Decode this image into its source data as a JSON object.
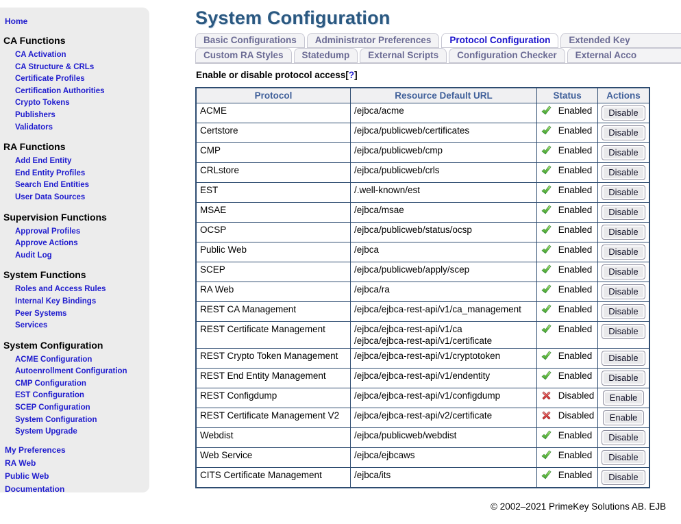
{
  "page_title": "System Configuration",
  "sidebar": {
    "items": [
      {
        "t": "link",
        "label": "Home"
      },
      {
        "t": "head",
        "label": "CA Functions"
      },
      {
        "t": "sub",
        "label": "CA Activation"
      },
      {
        "t": "sub",
        "label": "CA Structure & CRLs"
      },
      {
        "t": "sub",
        "label": "Certificate Profiles"
      },
      {
        "t": "sub",
        "label": "Certification Authorities"
      },
      {
        "t": "sub",
        "label": "Crypto Tokens"
      },
      {
        "t": "sub",
        "label": "Publishers"
      },
      {
        "t": "sub",
        "label": "Validators"
      },
      {
        "t": "head",
        "label": "RA Functions"
      },
      {
        "t": "sub",
        "label": "Add End Entity"
      },
      {
        "t": "sub",
        "label": "End Entity Profiles"
      },
      {
        "t": "sub",
        "label": "Search End Entities"
      },
      {
        "t": "sub",
        "label": "User Data Sources"
      },
      {
        "t": "head",
        "label": "Supervision Functions"
      },
      {
        "t": "sub",
        "label": "Approval Profiles"
      },
      {
        "t": "sub",
        "label": "Approve Actions"
      },
      {
        "t": "sub",
        "label": "Audit Log"
      },
      {
        "t": "head",
        "label": "System Functions"
      },
      {
        "t": "sub",
        "label": "Roles and Access Rules"
      },
      {
        "t": "sub",
        "label": "Internal Key Bindings"
      },
      {
        "t": "sub",
        "label": "Peer Systems"
      },
      {
        "t": "sub",
        "label": "Services"
      },
      {
        "t": "head",
        "label": "System Configuration"
      },
      {
        "t": "sub",
        "label": "ACME Configuration"
      },
      {
        "t": "sub",
        "label": "Autoenrollment Configuration"
      },
      {
        "t": "sub",
        "label": "CMP Configuration"
      },
      {
        "t": "sub",
        "label": "EST Configuration"
      },
      {
        "t": "sub",
        "label": "SCEP Configuration"
      },
      {
        "t": "sub",
        "label": "System Configuration"
      },
      {
        "t": "sub",
        "label": "System Upgrade"
      },
      {
        "t": "link",
        "gap": true,
        "label": "My Preferences"
      },
      {
        "t": "link",
        "label": "RA Web"
      },
      {
        "t": "link",
        "label": "Public Web"
      },
      {
        "t": "link",
        "label": "Documentation"
      }
    ]
  },
  "tabs": {
    "row1": [
      {
        "label": "Basic Configurations"
      },
      {
        "label": "Administrator Preferences"
      },
      {
        "label": "Protocol Configuration",
        "active": true
      },
      {
        "label": "Extended Key",
        "cut": true
      }
    ],
    "row2": [
      {
        "label": "Custom RA Styles"
      },
      {
        "label": "Statedump"
      },
      {
        "label": "External Scripts"
      },
      {
        "label": "Configuration Checker"
      },
      {
        "label": "External Acco",
        "cut": true
      }
    ]
  },
  "help": {
    "prefix": "Enable or disable protocol access",
    "bracket_open": "[",
    "link": "?",
    "bracket_close": "]"
  },
  "table": {
    "columns": [
      "Protocol",
      "Resource Default URL",
      "Status",
      "Actions"
    ],
    "rows": [
      {
        "protocol": "ACME",
        "urls": [
          "/ejbca/acme"
        ],
        "enabled": true,
        "status": "Enabled",
        "action": "Disable"
      },
      {
        "protocol": "Certstore",
        "urls": [
          "/ejbca/publicweb/certificates"
        ],
        "enabled": true,
        "status": "Enabled",
        "action": "Disable"
      },
      {
        "protocol": "CMP",
        "urls": [
          "/ejbca/publicweb/cmp"
        ],
        "enabled": true,
        "status": "Enabled",
        "action": "Disable"
      },
      {
        "protocol": "CRLstore",
        "urls": [
          "/ejbca/publicweb/crls"
        ],
        "enabled": true,
        "status": "Enabled",
        "action": "Disable"
      },
      {
        "protocol": "EST",
        "urls": [
          "/.well-known/est"
        ],
        "enabled": true,
        "status": "Enabled",
        "action": "Disable"
      },
      {
        "protocol": "MSAE",
        "urls": [
          "/ejbca/msae"
        ],
        "enabled": true,
        "status": "Enabled",
        "action": "Disable"
      },
      {
        "protocol": "OCSP",
        "urls": [
          "/ejbca/publicweb/status/ocsp"
        ],
        "enabled": true,
        "status": "Enabled",
        "action": "Disable"
      },
      {
        "protocol": "Public Web",
        "urls": [
          "/ejbca"
        ],
        "enabled": true,
        "status": "Enabled",
        "action": "Disable"
      },
      {
        "protocol": "SCEP",
        "urls": [
          "/ejbca/publicweb/apply/scep"
        ],
        "enabled": true,
        "status": "Enabled",
        "action": "Disable"
      },
      {
        "protocol": "RA Web",
        "urls": [
          "/ejbca/ra"
        ],
        "enabled": true,
        "status": "Enabled",
        "action": "Disable"
      },
      {
        "protocol": "REST CA Management",
        "urls": [
          "/ejbca/ejbca-rest-api/v1/ca_management"
        ],
        "enabled": true,
        "status": "Enabled",
        "action": "Disable"
      },
      {
        "protocol": "REST Certificate Management",
        "urls": [
          "/ejbca/ejbca-rest-api/v1/ca",
          "/ejbca/ejbca-rest-api/v1/certificate"
        ],
        "enabled": true,
        "status": "Enabled",
        "action": "Disable"
      },
      {
        "protocol": "REST Crypto Token Management",
        "urls": [
          "/ejbca/ejbca-rest-api/v1/cryptotoken"
        ],
        "enabled": true,
        "status": "Enabled",
        "action": "Disable"
      },
      {
        "protocol": "REST End Entity Management",
        "urls": [
          "/ejbca/ejbca-rest-api/v1/endentity"
        ],
        "enabled": true,
        "status": "Enabled",
        "action": "Disable"
      },
      {
        "protocol": "REST Configdump",
        "urls": [
          "/ejbca/ejbca-rest-api/v1/configdump"
        ],
        "enabled": false,
        "status": "Disabled",
        "action": "Enable"
      },
      {
        "protocol": "REST Certificate Management V2",
        "urls": [
          "/ejbca/ejbca-rest-api/v2/certificate"
        ],
        "enabled": false,
        "status": "Disabled",
        "action": "Enable"
      },
      {
        "protocol": "Webdist",
        "urls": [
          "/ejbca/publicweb/webdist"
        ],
        "enabled": true,
        "status": "Enabled",
        "action": "Disable"
      },
      {
        "protocol": "Web Service",
        "urls": [
          "/ejbca/ejbcaws"
        ],
        "enabled": true,
        "status": "Enabled",
        "action": "Disable"
      },
      {
        "protocol": "CITS Certificate Management",
        "urls": [
          "/ejbca/its"
        ],
        "enabled": true,
        "status": "Enabled",
        "action": "Disable"
      }
    ]
  },
  "footer": {
    "copyright": "© 2002–2021 PrimeKey Solutions AB. EJB"
  },
  "icons": {
    "enabled": "green-check-icon",
    "disabled": "red-cross-icon",
    "help": "question-mark-link"
  },
  "colors": {
    "sidebar_bg": "#ececec",
    "link_blue": "#1f1cce",
    "title_blue": "#2a5880",
    "tab_text": "#6b6b94",
    "active_tab_text": "#1a12cc",
    "table_border": "#2d4b70",
    "table_header_text": "#40609a",
    "status_ok_green": "#4caf50",
    "status_error_red": "#d32f2f"
  }
}
